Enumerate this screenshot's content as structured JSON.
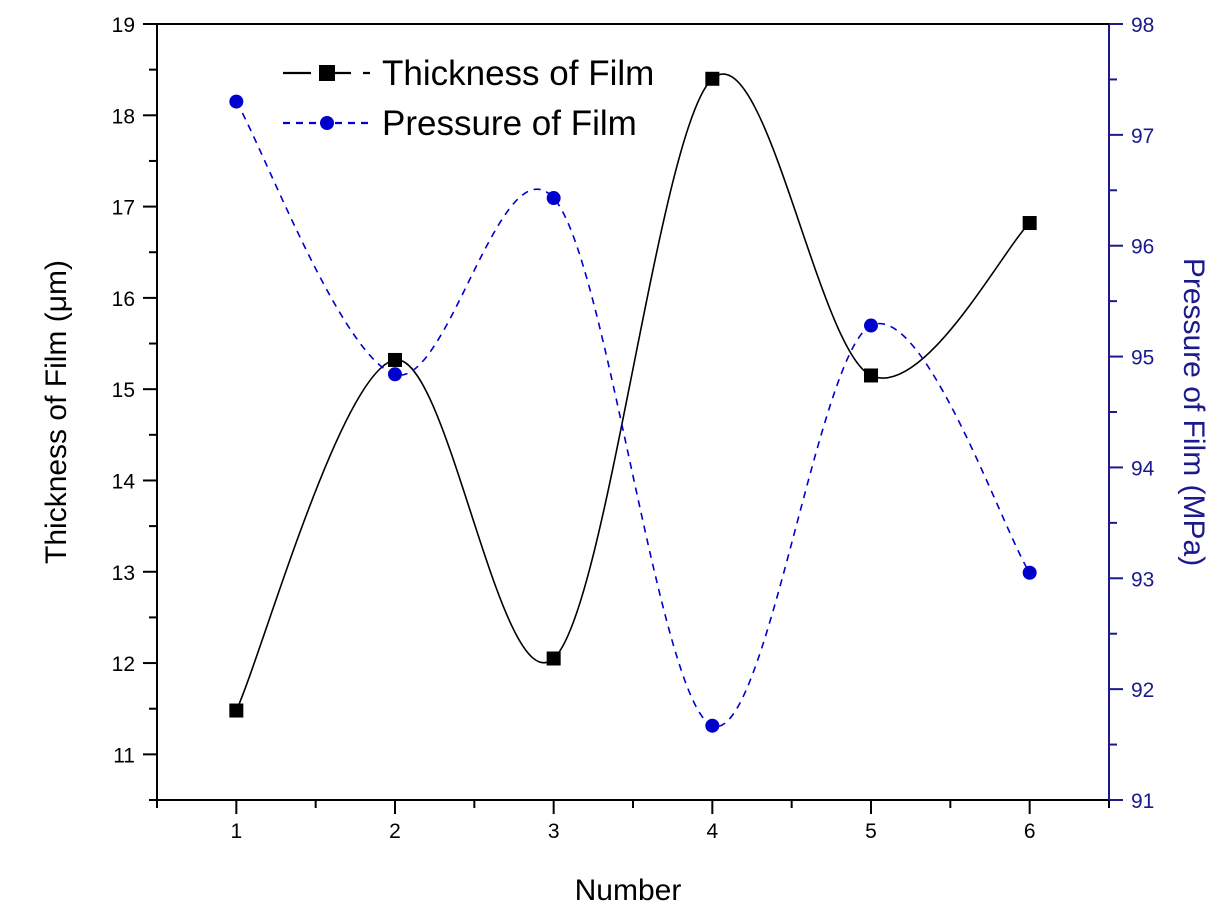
{
  "chart_data": {
    "type": "line",
    "xlabel": "Number",
    "ylabel": "Thickness of Film (μm)",
    "y2label": "Pressure of Film (MPa)",
    "x": [
      1,
      2,
      3,
      4,
      5,
      6
    ],
    "xticks": [
      "1",
      "2",
      "3",
      "4",
      "5",
      "6"
    ],
    "xlim": [
      0.5,
      6.5
    ],
    "ylim": [
      10.5,
      19
    ],
    "yticks": [
      "11",
      "12",
      "13",
      "14",
      "15",
      "16",
      "17",
      "18",
      "19"
    ],
    "y2lim": [
      91,
      98
    ],
    "y2ticks": [
      "91",
      "92",
      "93",
      "94",
      "95",
      "96",
      "97",
      "98"
    ],
    "grid": false,
    "legend_position": "top-left",
    "series": [
      {
        "name": "Thickness of Film",
        "axis": "left",
        "values": [
          11.48,
          15.32,
          12.05,
          18.4,
          15.15,
          16.82
        ],
        "color": "#000000",
        "marker": "square",
        "line": "solid"
      },
      {
        "name": "Pressure of Film",
        "axis": "right",
        "values": [
          97.3,
          94.84,
          96.43,
          91.67,
          95.28,
          93.05
        ],
        "color": "#0000cc",
        "marker": "circle",
        "line": "dashed"
      }
    ],
    "colors": {
      "left_axis": "#000000",
      "right_axis": "#1a1a8c"
    }
  }
}
